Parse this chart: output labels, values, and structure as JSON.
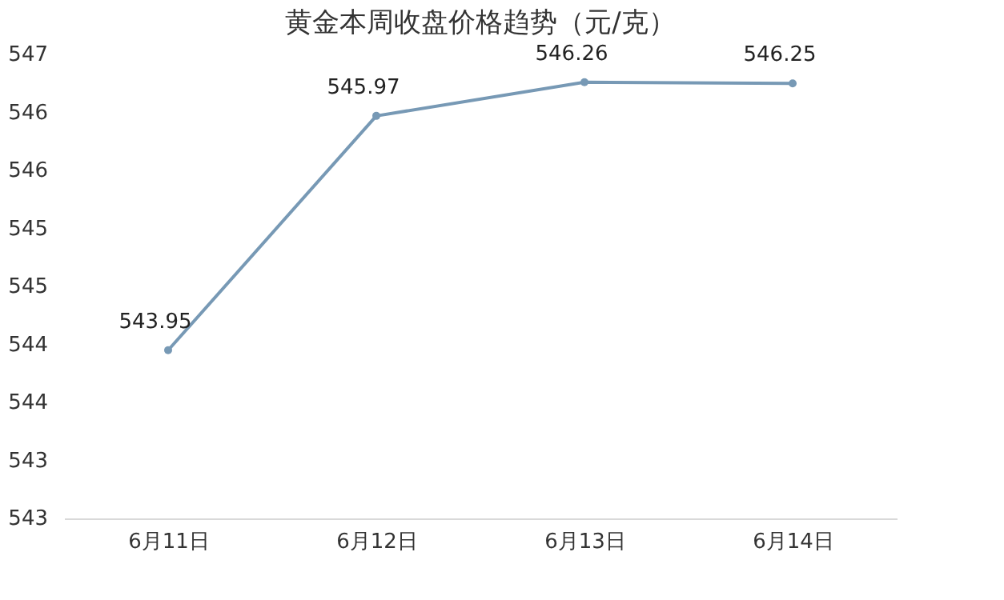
{
  "chart_data": {
    "type": "line",
    "title": "黄金本周收盘价格趋势（元/克）",
    "categories": [
      "6月11日",
      "6月12日",
      "6月13日",
      "6月14日"
    ],
    "series": [
      {
        "color": "#7799b5",
        "values": [
          543.95,
          545.97,
          546.26,
          546.25
        ]
      }
    ],
    "ylim": [
      542.5,
      546.5
    ],
    "yticks": [
      {
        "value": 542.5,
        "label": "543"
      },
      {
        "value": 543,
        "label": "543"
      },
      {
        "value": 543.5,
        "label": "544"
      },
      {
        "value": 544,
        "label": "544"
      },
      {
        "value": 544.5,
        "label": "545"
      },
      {
        "value": 545,
        "label": "545"
      },
      {
        "value": 545.5,
        "label": "546"
      },
      {
        "value": 546,
        "label": "546"
      },
      {
        "value": 546.5,
        "label": "547"
      }
    ],
    "data_labels": true,
    "marker": "circle",
    "grid": false
  }
}
